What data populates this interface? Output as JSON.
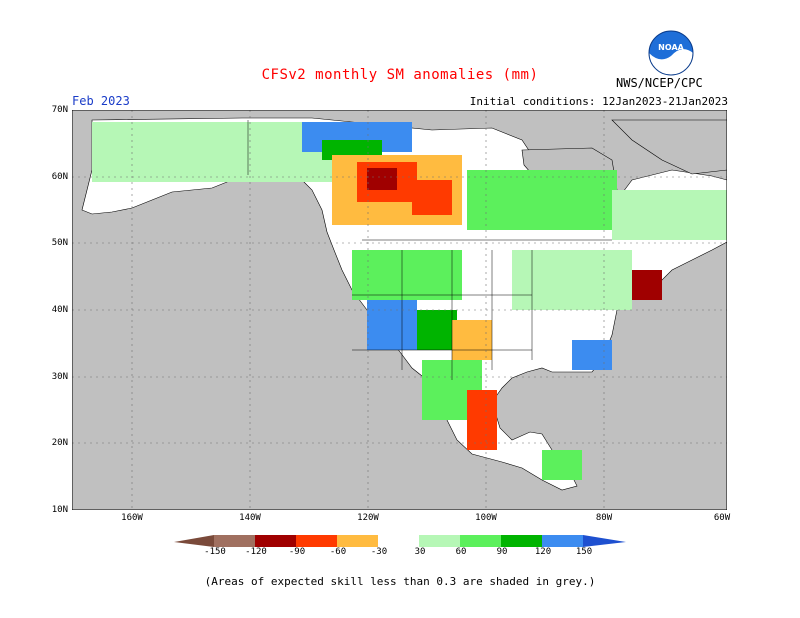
{
  "title": "CFSv2 monthly SM anomalies (mm)",
  "month": "Feb 2023",
  "initial_conditions": "Initial conditions: 12Jan2023-21Jan2023",
  "agency": "NWS/NCEP/CPC",
  "logo_text": "NOAA",
  "footnote": "(Areas of expected skill less than 0.3 are shaded in grey.)",
  "colors": {
    "title": "#ff0000",
    "month": "#1a3cc8",
    "grey_land": "#c0c0c0",
    "white_land": "#ffffff",
    "ocean": "#ffffff",
    "neg_150": "#7a4a3a",
    "neg_120": "#a07060",
    "neg_90": "#a00000",
    "neg_60": "#ff3a00",
    "neg_30": "#ffbb40",
    "pos_30": "#b6f7b6",
    "pos_60": "#5cf05c",
    "pos_90": "#00b400",
    "pos_120": "#008c00",
    "pos_150": "#3c8cf0",
    "pos_max": "#1e50d0"
  },
  "map": {
    "lat_labels": [
      "70N",
      "60N",
      "50N",
      "40N",
      "30N",
      "20N",
      "10N"
    ],
    "lon_labels": [
      "160W",
      "140W",
      "120W",
      "100W",
      "80W",
      "60W"
    ]
  },
  "colorbar": {
    "labels": [
      "-150",
      "-120",
      "-90",
      "-60",
      "-30",
      "30",
      "60",
      "90",
      "120",
      "150"
    ]
  }
}
